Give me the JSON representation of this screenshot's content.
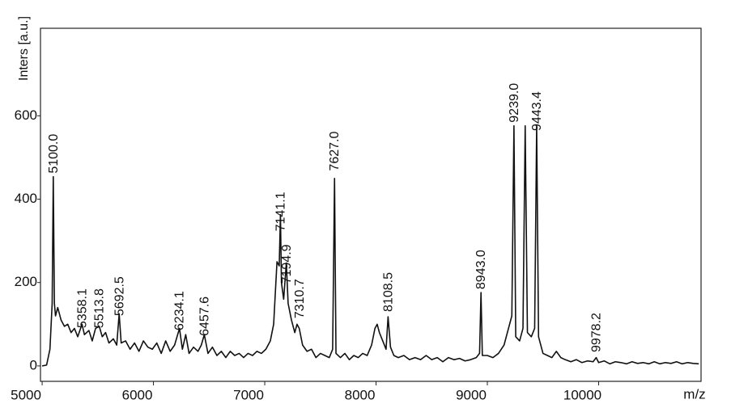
{
  "chart_data": {
    "type": "line",
    "x_label": "m/z",
    "y_label": "Inters [a.u.]",
    "color": "#111111",
    "xlim": [
      4985,
      10920
    ],
    "ylim": [
      -37,
      810
    ],
    "xticks": [
      5000,
      6000,
      7000,
      8000,
      9000,
      10000
    ],
    "yticks": [
      0,
      200,
      400,
      600
    ],
    "x": [
      5000,
      5040,
      5070,
      5090,
      5100,
      5110,
      5120,
      5140,
      5170,
      5200,
      5230,
      5260,
      5290,
      5320,
      5358,
      5380,
      5420,
      5450,
      5480,
      5513,
      5540,
      5570,
      5600,
      5640,
      5670,
      5692,
      5710,
      5750,
      5790,
      5830,
      5870,
      5910,
      5950,
      5990,
      6030,
      6070,
      6110,
      6150,
      6190,
      6234,
      6260,
      6290,
      6320,
      6360,
      6400,
      6430,
      6457,
      6490,
      6530,
      6570,
      6610,
      6650,
      6690,
      6730,
      6770,
      6810,
      6850,
      6890,
      6930,
      6970,
      7010,
      7050,
      7080,
      7110,
      7130,
      7141,
      7150,
      7170,
      7194,
      7210,
      7240,
      7270,
      7290,
      7310,
      7340,
      7380,
      7420,
      7460,
      7500,
      7540,
      7580,
      7610,
      7627,
      7640,
      7680,
      7720,
      7760,
      7800,
      7840,
      7880,
      7920,
      7960,
      7990,
      8010,
      8030,
      8060,
      8090,
      8108,
      8130,
      8160,
      8200,
      8250,
      8300,
      8350,
      8400,
      8450,
      8500,
      8550,
      8600,
      8650,
      8700,
      8750,
      8800,
      8850,
      8900,
      8930,
      8943,
      8955,
      9000,
      9050,
      9100,
      9150,
      9190,
      9220,
      9239,
      9255,
      9290,
      9320,
      9340,
      9360,
      9395,
      9425,
      9443,
      9460,
      9500,
      9540,
      9580,
      9620,
      9660,
      9700,
      9750,
      9800,
      9850,
      9900,
      9950,
      9978,
      10000,
      10050,
      10100,
      10150,
      10200,
      10250,
      10300,
      10350,
      10400,
      10450,
      10500,
      10550,
      10600,
      10650,
      10700,
      10750,
      10800,
      10850,
      10900
    ],
    "values": [
      0,
      2,
      40,
      150,
      454,
      150,
      120,
      140,
      110,
      95,
      100,
      80,
      90,
      70,
      100,
      75,
      85,
      60,
      90,
      95,
      70,
      80,
      55,
      65,
      50,
      125,
      55,
      60,
      40,
      55,
      35,
      60,
      45,
      40,
      55,
      30,
      60,
      35,
      50,
      90,
      40,
      75,
      30,
      45,
      35,
      50,
      75,
      30,
      45,
      25,
      35,
      20,
      35,
      25,
      30,
      20,
      30,
      25,
      35,
      30,
      40,
      60,
      100,
      250,
      240,
      363,
      200,
      160,
      247,
      150,
      110,
      80,
      100,
      90,
      50,
      35,
      40,
      20,
      30,
      25,
      20,
      40,
      450,
      30,
      20,
      30,
      15,
      25,
      20,
      30,
      25,
      50,
      90,
      100,
      80,
      60,
      40,
      118,
      45,
      25,
      20,
      25,
      15,
      20,
      15,
      25,
      15,
      20,
      10,
      20,
      15,
      18,
      12,
      15,
      20,
      30,
      176,
      25,
      25,
      20,
      30,
      50,
      90,
      120,
      576,
      70,
      60,
      90,
      576,
      80,
      70,
      90,
      576,
      70,
      30,
      25,
      20,
      35,
      20,
      15,
      10,
      15,
      8,
      12,
      10,
      20,
      8,
      12,
      5,
      10,
      8,
      5,
      10,
      6,
      8,
      5,
      10,
      5,
      8,
      6,
      10,
      5,
      8,
      6,
      5
    ],
    "annotations": [
      {
        "x": 5100.0,
        "intensity": 454,
        "label": "5100.0"
      },
      {
        "x": 5358.1,
        "intensity": 83,
        "label": "5358.1"
      },
      {
        "x": 5513.8,
        "intensity": 83,
        "label": "5513.8"
      },
      {
        "x": 5692.5,
        "intensity": 112,
        "label": "5692.5"
      },
      {
        "x": 6234.1,
        "intensity": 77,
        "label": "6234.1"
      },
      {
        "x": 6457.6,
        "intensity": 64,
        "label": "6457.6"
      },
      {
        "x": 7141.1,
        "intensity": 315,
        "label": "7141.1"
      },
      {
        "x": 7194.9,
        "intensity": 189,
        "label": "7194.9"
      },
      {
        "x": 7310.7,
        "intensity": 106,
        "label": "7310.7"
      },
      {
        "x": 7627.0,
        "intensity": 460,
        "label": "7627.0"
      },
      {
        "x": 8108.5,
        "intensity": 122,
        "label": "8108.5"
      },
      {
        "x": 8943.0,
        "intensity": 176,
        "label": "8943.0"
      },
      {
        "x": 9239.0,
        "intensity": 576,
        "label": "9239.0"
      },
      {
        "x": 9443.4,
        "intensity": 556,
        "label": "9443.4"
      },
      {
        "x": 9978.2,
        "intensity": 25,
        "label": "9978.2"
      }
    ]
  }
}
